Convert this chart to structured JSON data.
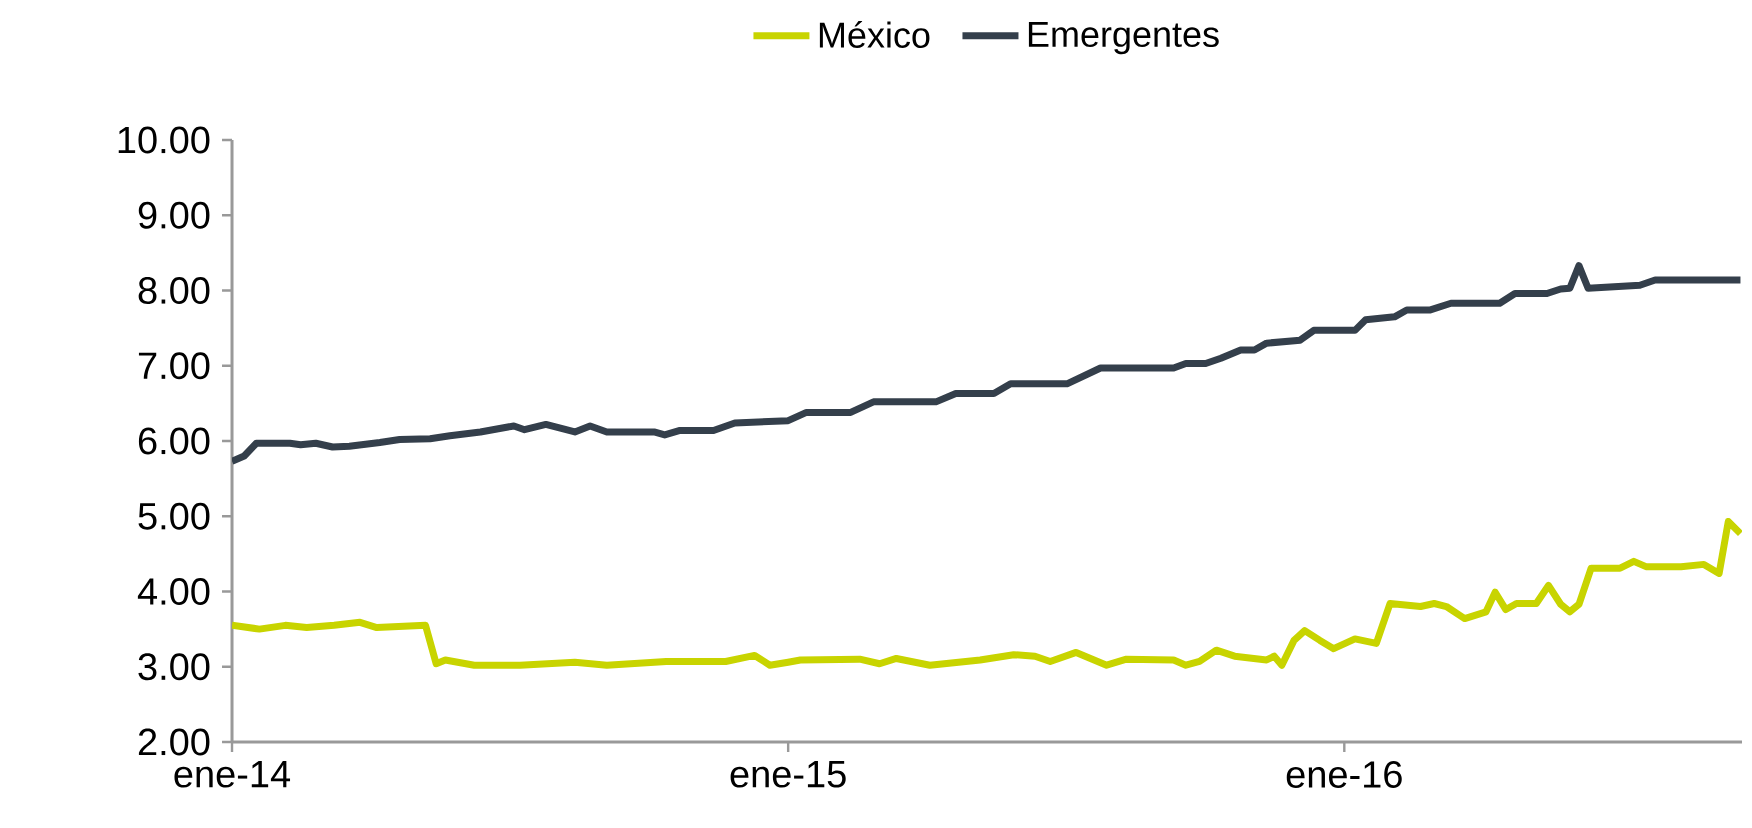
{
  "chart_data": {
    "type": "line",
    "legend": "top",
    "marker": "none",
    "line_style": "solid",
    "grid": false,
    "xlim": [
      "2014-01-01",
      "2016-09-18"
    ],
    "xticks": [
      {
        "value": "2014-01-01",
        "label": "ene-14"
      },
      {
        "value": "2015-01-01",
        "label": "ene-15"
      },
      {
        "value": "2016-01-01",
        "label": "ene-16"
      }
    ],
    "ylim": [
      2,
      10
    ],
    "yticks": [
      {
        "value": 2,
        "label": "2.00"
      },
      {
        "value": 3,
        "label": "3.00"
      },
      {
        "value": 4,
        "label": "4.00"
      },
      {
        "value": 5,
        "label": "5.00"
      },
      {
        "value": 6,
        "label": "6.00"
      },
      {
        "value": 7,
        "label": "7.00"
      },
      {
        "value": 8,
        "label": "8.00"
      },
      {
        "value": 9,
        "label": "9.00"
      },
      {
        "value": 10,
        "label": "10.00"
      }
    ],
    "series": [
      {
        "name": "México",
        "color": "#c8d400",
        "x": [
          "2014-01-01",
          "2014-01-19",
          "2014-02-05",
          "2014-02-19",
          "2014-03-09",
          "2014-03-26",
          "2014-04-06",
          "2014-05-08",
          "2014-05-15",
          "2014-05-21",
          "2014-06-09",
          "2014-07-09",
          "2014-08-14",
          "2014-09-04",
          "2014-10-13",
          "2014-11-21",
          "2014-12-10",
          "2014-12-20",
          "2015-01-01",
          "2015-01-09",
          "2015-02-17",
          "2015-03-02",
          "2015-03-13",
          "2015-04-04",
          "2015-05-07",
          "2015-05-29",
          "2015-06-12",
          "2015-06-22",
          "2015-07-09",
          "2015-07-29",
          "2015-08-11",
          "2015-09-11",
          "2015-09-19",
          "2015-09-28",
          "2015-10-09",
          "2015-10-21",
          "2015-11-11",
          "2015-11-16",
          "2015-11-21",
          "2015-11-29",
          "2015-12-06",
          "2015-12-16",
          "2015-12-25",
          "2016-01-08",
          "2016-01-22",
          "2016-01-31",
          "2016-02-20",
          "2016-02-29",
          "2016-03-08",
          "2016-03-20",
          "2016-04-03",
          "2016-04-09",
          "2016-04-16",
          "2016-04-23",
          "2016-05-06",
          "2016-05-14",
          "2016-05-22",
          "2016-05-28",
          "2016-06-03",
          "2016-06-11",
          "2016-06-30",
          "2016-07-09",
          "2016-07-17",
          "2016-08-09",
          "2016-08-24",
          "2016-09-03",
          "2016-09-09",
          "2016-09-17"
        ],
        "values": [
          3.55,
          3.5,
          3.55,
          3.52,
          3.55,
          3.59,
          3.52,
          3.55,
          3.04,
          3.09,
          3.02,
          3.02,
          3.06,
          3.02,
          3.07,
          3.07,
          3.15,
          3.02,
          3.06,
          3.09,
          3.1,
          3.04,
          3.11,
          3.02,
          3.09,
          3.16,
          3.14,
          3.07,
          3.19,
          3.02,
          3.1,
          3.09,
          3.02,
          3.07,
          3.22,
          3.14,
          3.09,
          3.14,
          3.02,
          3.35,
          3.48,
          3.35,
          3.24,
          3.37,
          3.31,
          3.84,
          3.8,
          3.84,
          3.8,
          3.64,
          3.73,
          3.99,
          3.76,
          3.84,
          3.84,
          4.08,
          3.83,
          3.73,
          3.83,
          4.31,
          4.31,
          4.4,
          4.33,
          4.33,
          4.36,
          4.24,
          4.93,
          4.77
        ]
      },
      {
        "name": "Emergentes",
        "color": "#343f4b",
        "x": [
          "2014-01-01",
          "2014-01-09",
          "2014-01-17",
          "2014-02-08",
          "2014-02-15",
          "2014-02-25",
          "2014-03-08",
          "2014-03-19",
          "2014-04-08",
          "2014-04-21",
          "2014-05-11",
          "2014-05-24",
          "2014-06-13",
          "2014-07-05",
          "2014-07-12",
          "2014-07-26",
          "2014-08-14",
          "2014-08-24",
          "2014-09-04",
          "2014-10-05",
          "2014-10-12",
          "2014-10-22",
          "2014-11-13",
          "2014-11-27",
          "2015-01-01",
          "2015-01-13",
          "2015-02-11",
          "2015-02-26",
          "2015-04-08",
          "2015-04-21",
          "2015-05-16",
          "2015-05-27",
          "2015-07-03",
          "2015-07-25",
          "2015-09-11",
          "2015-09-19",
          "2015-10-02",
          "2015-10-12",
          "2015-10-25",
          "2015-11-03",
          "2015-11-11",
          "2015-12-03",
          "2015-12-12",
          "2016-01-08",
          "2016-01-15",
          "2016-02-03",
          "2016-02-11",
          "2016-02-26",
          "2016-03-11",
          "2016-04-12",
          "2016-04-22",
          "2016-05-13",
          "2016-05-22",
          "2016-05-28",
          "2016-06-03",
          "2016-06-09",
          "2016-07-13",
          "2016-07-23",
          "2016-09-17"
        ],
        "values": [
          5.73,
          5.8,
          5.97,
          5.97,
          5.95,
          5.97,
          5.92,
          5.93,
          5.98,
          6.02,
          6.03,
          6.07,
          6.12,
          6.2,
          6.15,
          6.22,
          6.12,
          6.2,
          6.12,
          6.12,
          6.08,
          6.14,
          6.14,
          6.24,
          6.27,
          6.38,
          6.38,
          6.52,
          6.52,
          6.63,
          6.63,
          6.76,
          6.76,
          6.97,
          6.97,
          7.03,
          7.03,
          7.1,
          7.21,
          7.21,
          7.3,
          7.34,
          7.47,
          7.47,
          7.61,
          7.65,
          7.74,
          7.74,
          7.83,
          7.83,
          7.96,
          7.96,
          8.02,
          8.03,
          8.33,
          8.03,
          8.07,
          8.14,
          8.14
        ]
      }
    ]
  }
}
